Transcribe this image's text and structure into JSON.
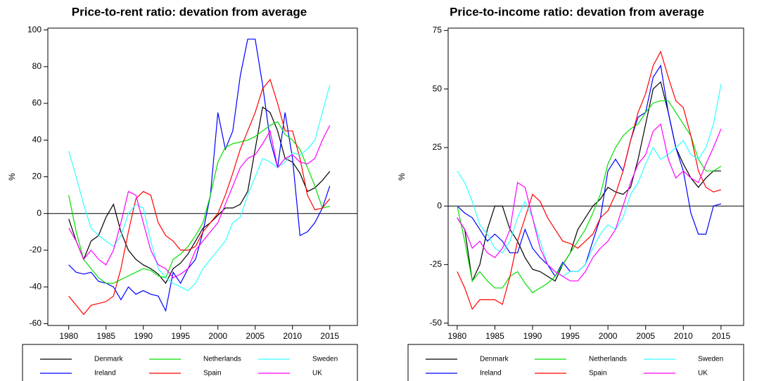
{
  "chart_data": [
    {
      "type": "line",
      "title": "Price-to-rent ratio: devation from average",
      "y_label": "%",
      "x": [
        1980,
        1981,
        1982,
        1983,
        1984,
        1985,
        1986,
        1987,
        1988,
        1989,
        1990,
        1991,
        1992,
        1993,
        1994,
        1995,
        1996,
        1997,
        1998,
        1999,
        2000,
        2001,
        2002,
        2003,
        2004,
        2005,
        2006,
        2007,
        2008,
        2009,
        2010,
        2011,
        2012,
        2013,
        2014,
        2015
      ],
      "xlim": [
        1977.2,
        2018.7
      ],
      "xticks": [
        1980,
        1985,
        1990,
        1995,
        2000,
        2005,
        2010,
        2015
      ],
      "ylim": [
        -61,
        101
      ],
      "yticks": [
        -60,
        -40,
        -20,
        0,
        20,
        40,
        60,
        80,
        100
      ],
      "reference_line": 0,
      "series": [
        {
          "name": "Denmark",
          "color": "#000000",
          "values": [
            -3,
            -15,
            -25,
            -15,
            -12,
            -2,
            5,
            -10,
            -20,
            -25,
            -28,
            -30,
            -33,
            -38,
            -30,
            -27,
            -22,
            -15,
            -8,
            -5,
            -1,
            3,
            3,
            5,
            12,
            35,
            58,
            55,
            45,
            30,
            28,
            22,
            12,
            14,
            18,
            23
          ]
        },
        {
          "name": "Ireland",
          "color": "#0000ff",
          "values": [
            -28,
            -32,
            -33,
            -32,
            -37,
            -38,
            -40,
            -47,
            -40,
            -44,
            -42,
            -44,
            -45,
            -53,
            -32,
            -38,
            -30,
            -25,
            -10,
            10,
            55,
            35,
            45,
            75,
            95,
            95,
            70,
            40,
            25,
            55,
            30,
            -12,
            -10,
            -5,
            3,
            15
          ]
        },
        {
          "name": "Netherlands",
          "color": "#00e000",
          "values": [
            10,
            -10,
            -25,
            -30,
            -35,
            -38,
            -38,
            -36,
            -34,
            -32,
            -30,
            -31,
            -34,
            -35,
            -25,
            -22,
            -18,
            -12,
            -5,
            10,
            28,
            36,
            38,
            39,
            40,
            42,
            45,
            48,
            50,
            43,
            40,
            35,
            25,
            15,
            3,
            4
          ]
        },
        {
          "name": "Spain",
          "color": "#ff0000",
          "values": [
            -45,
            -50,
            -55,
            -50,
            -49,
            -48,
            -45,
            -30,
            -10,
            8,
            12,
            10,
            -5,
            -12,
            -15,
            -20,
            -20,
            -18,
            -10,
            -5,
            0,
            10,
            22,
            35,
            45,
            55,
            68,
            73,
            60,
            45,
            45,
            30,
            10,
            2,
            3,
            8
          ]
        },
        {
          "name": "Sweden",
          "color": "#33ffff",
          "values": [
            34,
            20,
            5,
            -8,
            -12,
            -15,
            -18,
            -12,
            0,
            5,
            3,
            -15,
            -30,
            -35,
            -38,
            -40,
            -42,
            -38,
            -30,
            -25,
            -20,
            -15,
            -5,
            -2,
            10,
            20,
            30,
            28,
            25,
            28,
            33,
            32,
            35,
            40,
            55,
            70
          ]
        },
        {
          "name": "UK",
          "color": "#ff00ff",
          "values": [
            -8,
            -15,
            -25,
            -20,
            -25,
            -28,
            -20,
            -5,
            12,
            10,
            -5,
            -20,
            -28,
            -30,
            -35,
            -33,
            -30,
            -20,
            -15,
            -10,
            -5,
            5,
            15,
            25,
            30,
            32,
            38,
            45,
            25,
            30,
            32,
            28,
            27,
            30,
            40,
            48
          ]
        }
      ]
    },
    {
      "type": "line",
      "title": "Price-to-income ratio: devation from average",
      "y_label": "%",
      "x": [
        1980,
        1981,
        1982,
        1983,
        1984,
        1985,
        1986,
        1987,
        1988,
        1989,
        1990,
        1991,
        1992,
        1993,
        1994,
        1995,
        1996,
        1997,
        1998,
        1999,
        2000,
        2001,
        2002,
        2003,
        2004,
        2005,
        2006,
        2007,
        2008,
        2009,
        2010,
        2011,
        2012,
        2013,
        2014,
        2015
      ],
      "xlim": [
        1978.8,
        2018
      ],
      "xticks": [
        1980,
        1985,
        1990,
        1995,
        2000,
        2005,
        2010,
        2015
      ],
      "ylim": [
        -51,
        76
      ],
      "yticks": [
        -50,
        -25,
        0,
        25,
        50,
        75
      ],
      "reference_line": 0,
      "series": [
        {
          "name": "Denmark",
          "color": "#000000",
          "values": [
            -5,
            -10,
            -32,
            -25,
            -10,
            0,
            0,
            -10,
            -15,
            -22,
            -27,
            -28,
            -30,
            -32,
            -25,
            -20,
            -10,
            -5,
            0,
            3,
            8,
            6,
            5,
            8,
            20,
            35,
            50,
            53,
            40,
            25,
            18,
            12,
            8,
            12,
            15,
            15
          ]
        },
        {
          "name": "Ireland",
          "color": "#0000ff",
          "values": [
            0,
            -3,
            -5,
            -10,
            -15,
            -12,
            -15,
            -20,
            -20,
            -10,
            -18,
            -22,
            -25,
            -30,
            -24,
            -28,
            -28,
            -25,
            -15,
            -5,
            15,
            20,
            15,
            28,
            38,
            40,
            55,
            60,
            40,
            25,
            15,
            -3,
            -12,
            -12,
            0,
            1
          ]
        },
        {
          "name": "Netherlands",
          "color": "#00e000",
          "values": [
            0,
            -15,
            -32,
            -28,
            -32,
            -35,
            -35,
            -30,
            -28,
            -33,
            -37,
            -35,
            -33,
            -30,
            -25,
            -20,
            -15,
            -10,
            -3,
            5,
            18,
            25,
            30,
            33,
            35,
            40,
            44,
            45,
            45,
            40,
            35,
            30,
            20,
            15,
            15,
            17
          ]
        },
        {
          "name": "Spain",
          "color": "#ff0000",
          "values": [
            -28,
            -35,
            -44,
            -40,
            -40,
            -40,
            -42,
            -30,
            -15,
            -5,
            5,
            2,
            -5,
            -10,
            -15,
            -16,
            -18,
            -15,
            -12,
            -5,
            -2,
            5,
            15,
            28,
            40,
            48,
            60,
            66,
            55,
            45,
            42,
            30,
            15,
            8,
            6,
            7
          ]
        },
        {
          "name": "Sweden",
          "color": "#33ffff",
          "values": [
            15,
            10,
            2,
            -8,
            -12,
            -18,
            -20,
            -15,
            -5,
            2,
            -5,
            -15,
            -25,
            -28,
            -30,
            -28,
            -28,
            -25,
            -18,
            -12,
            -8,
            -10,
            -5,
            5,
            10,
            18,
            25,
            20,
            22,
            25,
            28,
            22,
            20,
            25,
            35,
            52
          ]
        },
        {
          "name": "UK",
          "color": "#ff00ff",
          "values": [
            -5,
            -10,
            -18,
            -15,
            -20,
            -22,
            -18,
            -10,
            10,
            8,
            -5,
            -18,
            -25,
            -28,
            -30,
            -32,
            -32,
            -28,
            -22,
            -18,
            -15,
            -10,
            0,
            10,
            18,
            22,
            32,
            35,
            20,
            12,
            15,
            12,
            10,
            18,
            25,
            33
          ]
        }
      ]
    }
  ]
}
